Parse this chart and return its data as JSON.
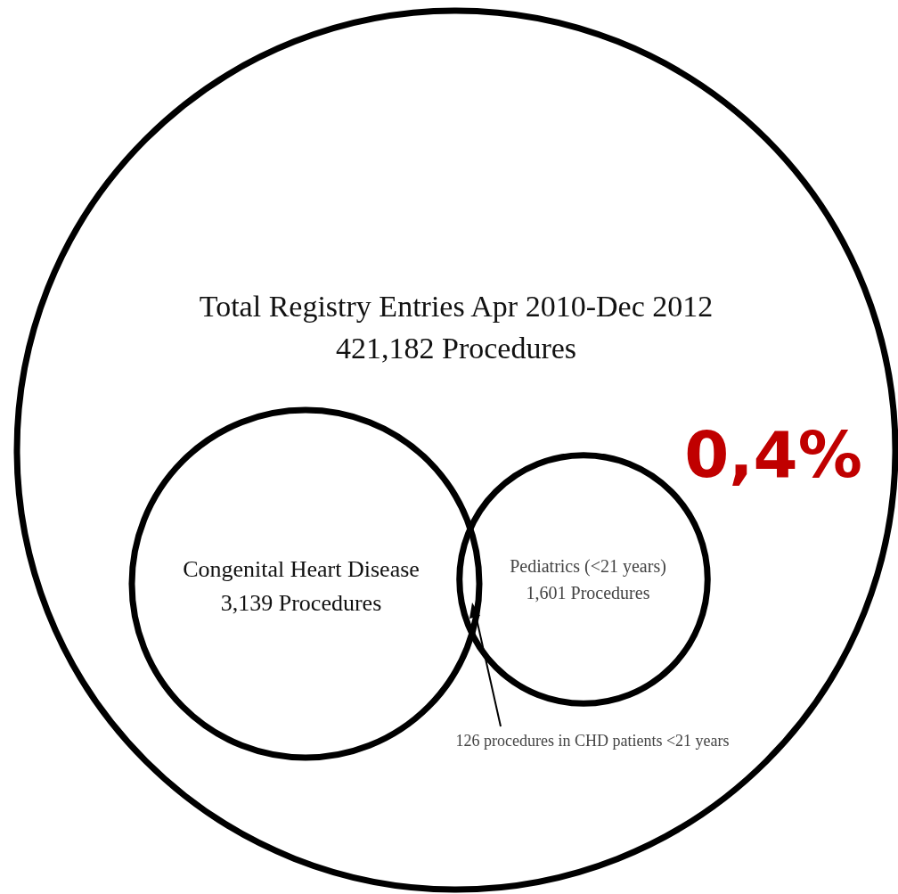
{
  "chart_data": {
    "type": "other",
    "categories": [
      "Total Registry Entries Apr 2010-Dec 2012",
      "Congenital Heart Disease",
      "Pediatrics (<21 years)"
    ],
    "values": [
      421182,
      3139,
      1601
    ],
    "value_labels": [
      "421,182 Procedures",
      "3,139 Procedures",
      "1,601 Procedures"
    ],
    "annotations": [
      "126 procedures in CHD patients <21 years",
      "0,4%"
    ]
  }
}
